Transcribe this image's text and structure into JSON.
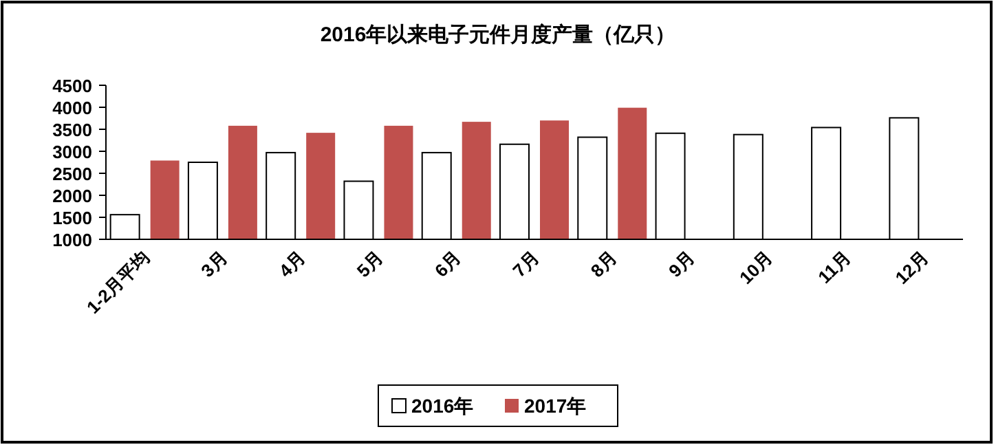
{
  "chart_data": {
    "type": "bar",
    "title": "2016年以来电子元件月度产量（亿只）",
    "categories": [
      "1-2月平均",
      "3月",
      "4月",
      "5月",
      "6月",
      "7月",
      "8月",
      "9月",
      "10月",
      "11月",
      "12月"
    ],
    "series": [
      {
        "name": "2016年",
        "color": "#ffffff",
        "values": [
          1560,
          2750,
          2970,
          2320,
          2970,
          3160,
          3320,
          3410,
          3380,
          3540,
          3760
        ]
      },
      {
        "name": "2017年",
        "color": "#c0504d",
        "values": [
          2790,
          3580,
          3420,
          3580,
          3670,
          3700,
          3990,
          null,
          null,
          null,
          null
        ]
      }
    ],
    "ylim": [
      1000,
      4500
    ],
    "yticks": [
      1000,
      1500,
      2000,
      2500,
      3000,
      3500,
      4000,
      4500
    ],
    "grid": false,
    "legend": "bottom"
  }
}
